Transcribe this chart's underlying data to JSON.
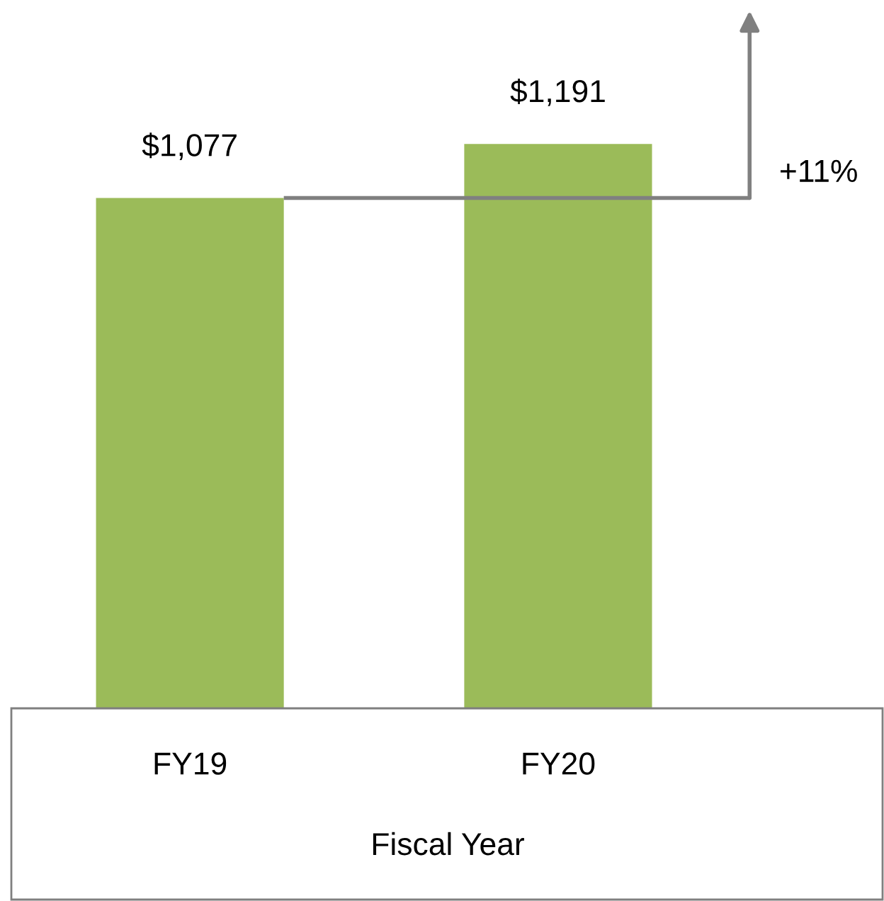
{
  "chart_data": {
    "type": "bar",
    "xlabel": "Fiscal Year",
    "categories": [
      "FY19",
      "FY20"
    ],
    "values": [
      1077,
      1191
    ],
    "value_labels": [
      "$1,077",
      "$1,191"
    ],
    "color": "#9bbb59",
    "ref_lines": [
      {
        "axis": "y",
        "value": 1077,
        "color": "#808080"
      }
    ],
    "annotations": [
      "+11%"
    ],
    "grid": false,
    "legend": false
  }
}
